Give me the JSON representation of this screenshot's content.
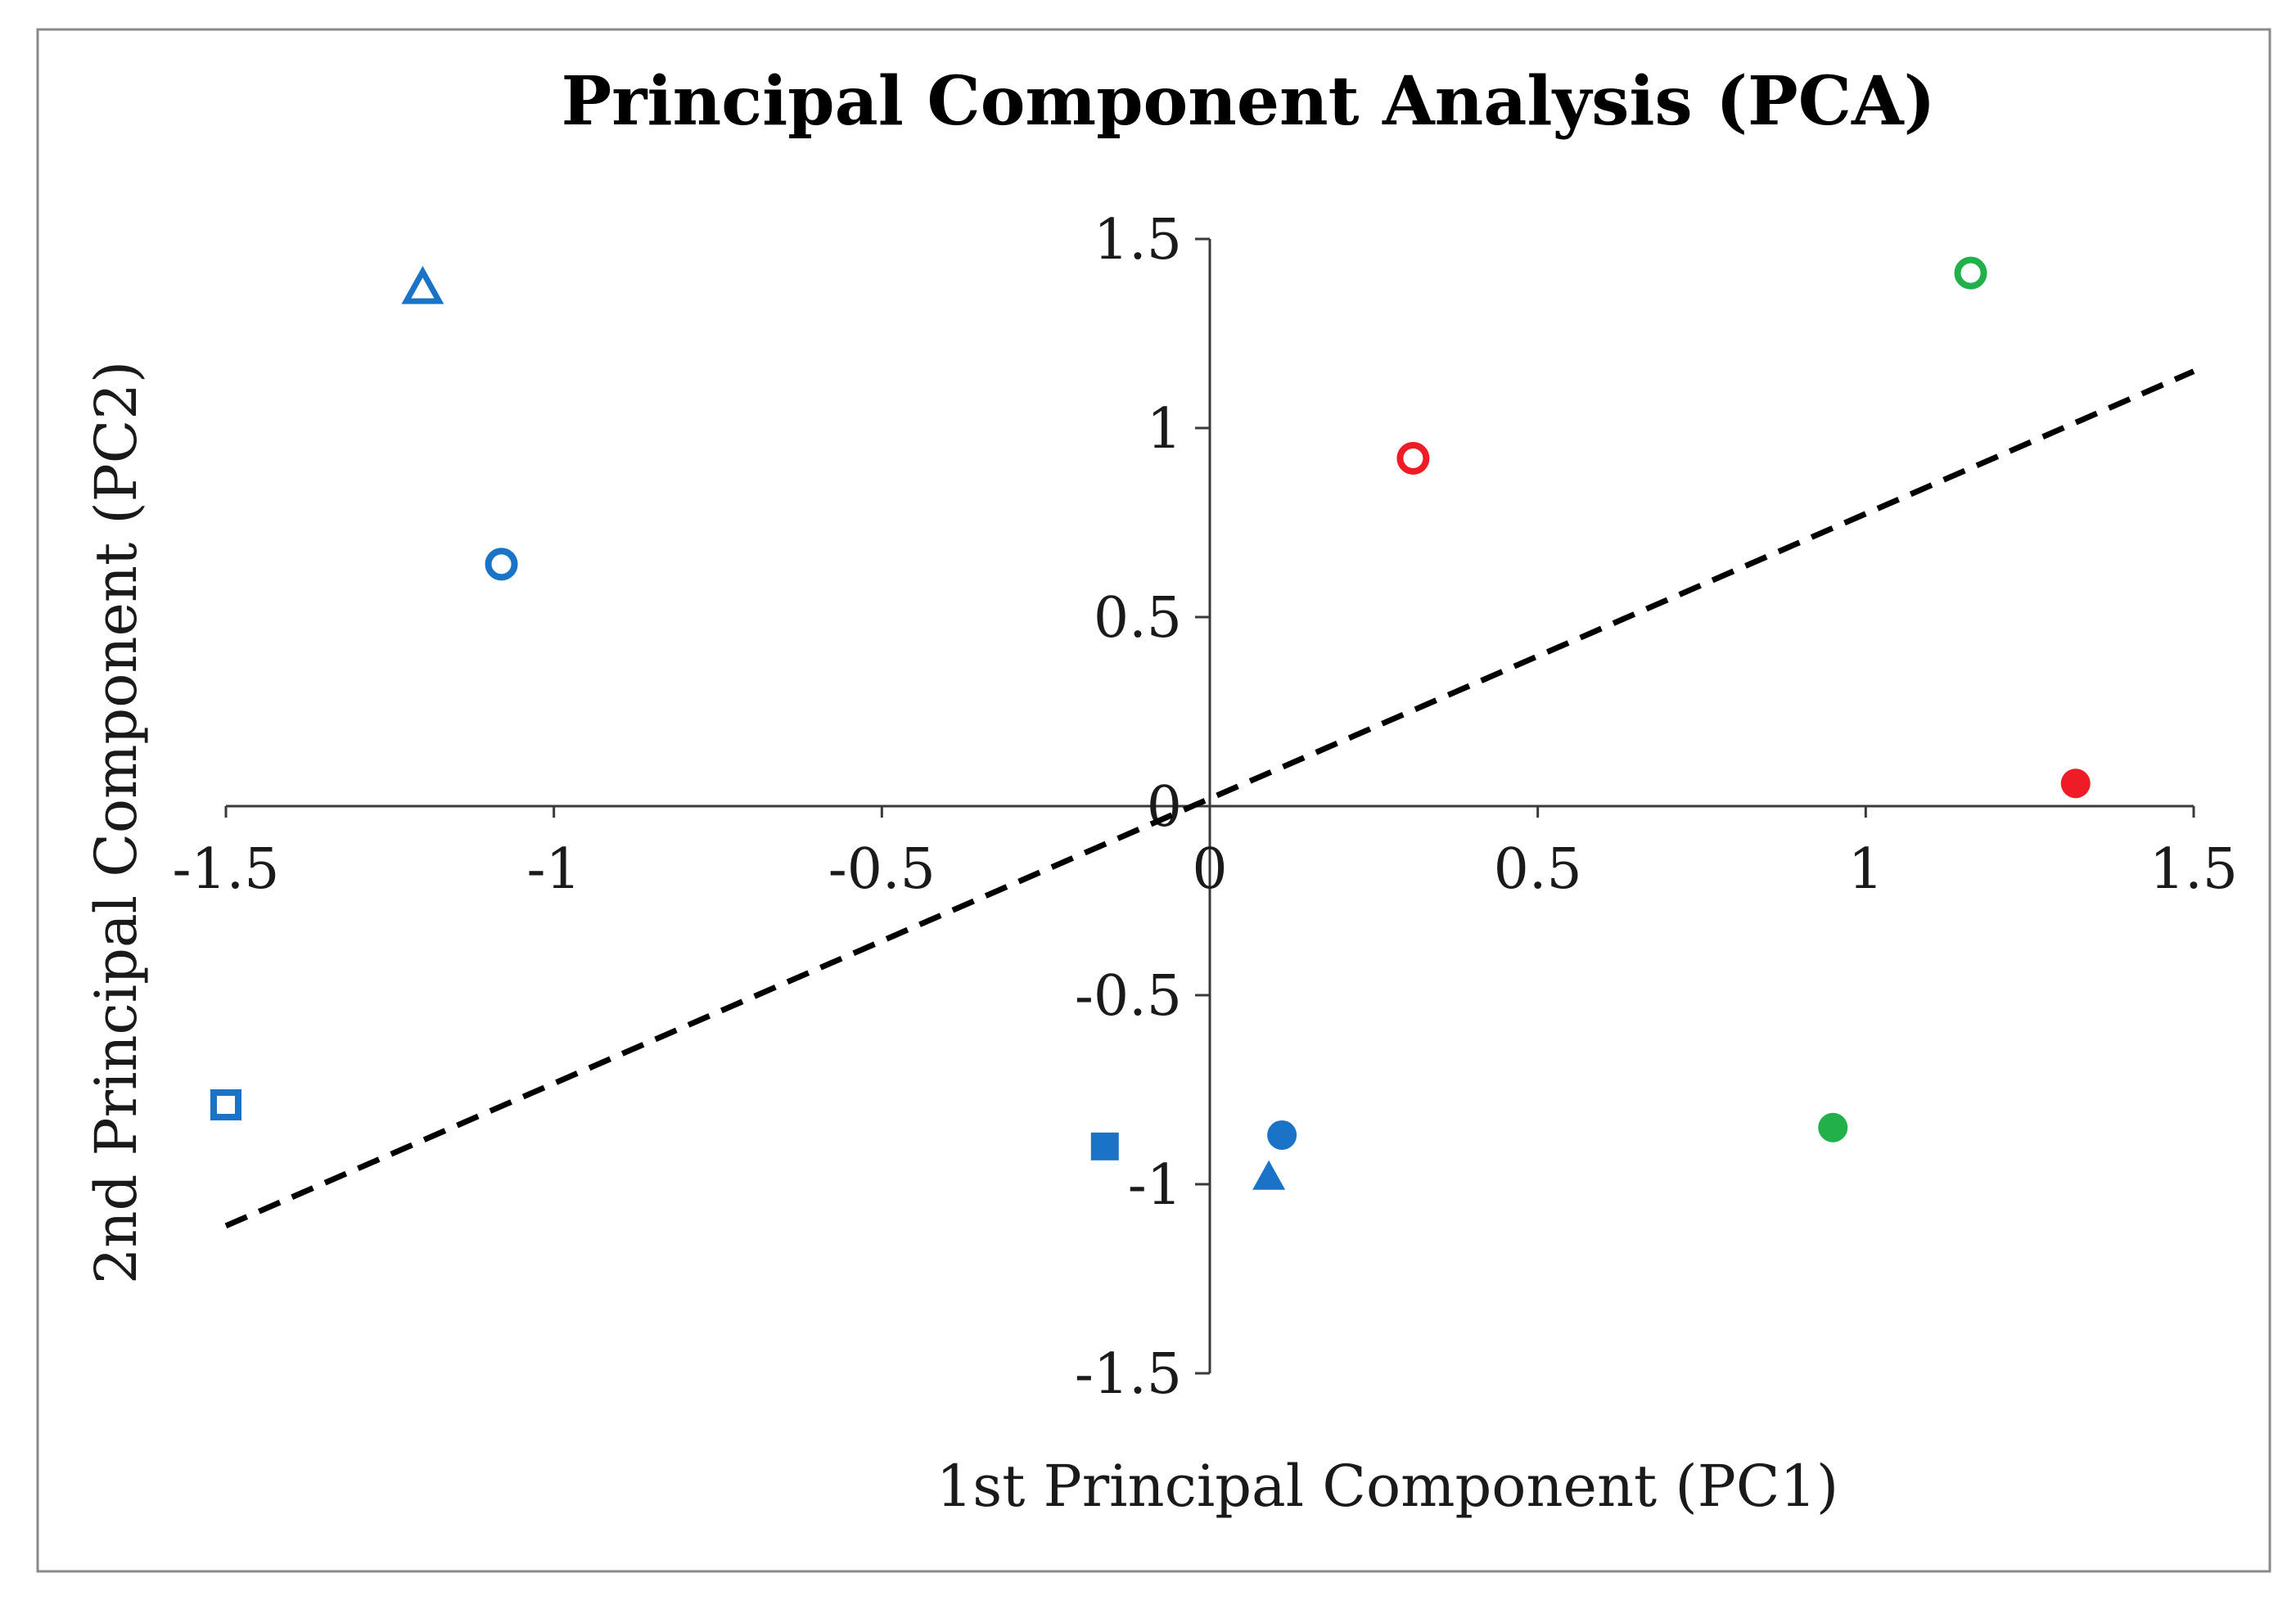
{
  "chart_data": {
    "type": "scatter",
    "title": "Principal Component Analysis (PCA)",
    "xlabel": "1st Principal Component (PC1)",
    "ylabel": "2nd Principal Component (PC2)",
    "xlim": [
      -1.5,
      1.5
    ],
    "ylim": [
      -1.5,
      1.5
    ],
    "x_ticks": [
      -1.5,
      -1,
      -0.5,
      0,
      0.5,
      1,
      1.5
    ],
    "x_tick_labels": [
      "-1.5",
      "-1",
      "-0.5",
      "0",
      "0.5",
      "1",
      "1.5"
    ],
    "y_ticks": [
      -1.5,
      -1,
      -0.5,
      0,
      0.5,
      1,
      1.5
    ],
    "y_tick_labels": [
      "-1.5",
      "-1",
      "-0.5",
      "0",
      "0.5",
      "1",
      "1.5"
    ],
    "grid": false,
    "axes_cross_at_origin": true,
    "points": [
      {
        "x": -1.2,
        "y": 1.37,
        "marker": "triangle",
        "filled": false,
        "color": "#1a73c6"
      },
      {
        "x": -1.08,
        "y": 0.64,
        "marker": "circle",
        "filled": false,
        "color": "#1a73c6"
      },
      {
        "x": -1.5,
        "y": -0.79,
        "marker": "square",
        "filled": false,
        "color": "#1a73c6"
      },
      {
        "x": -0.16,
        "y": -0.9,
        "marker": "square",
        "filled": true,
        "color": "#1a73c6"
      },
      {
        "x": 0.11,
        "y": -0.87,
        "marker": "circle",
        "filled": true,
        "color": "#1a73c6"
      },
      {
        "x": 0.09,
        "y": -0.98,
        "marker": "triangle",
        "filled": true,
        "color": "#1a73c6"
      },
      {
        "x": 0.31,
        "y": 0.92,
        "marker": "circle",
        "filled": false,
        "color": "#ee1c25"
      },
      {
        "x": 1.32,
        "y": 0.06,
        "marker": "circle",
        "filled": true,
        "color": "#ee1c25"
      },
      {
        "x": 1.16,
        "y": 1.41,
        "marker": "circle",
        "filled": false,
        "color": "#22b04b"
      },
      {
        "x": 0.95,
        "y": -0.85,
        "marker": "circle",
        "filled": true,
        "color": "#22b04b"
      }
    ],
    "reference_line": {
      "style": "dashed",
      "color": "#000000",
      "x": [
        -1.5,
        1.5
      ],
      "y": [
        -1.11,
        1.15
      ]
    }
  }
}
